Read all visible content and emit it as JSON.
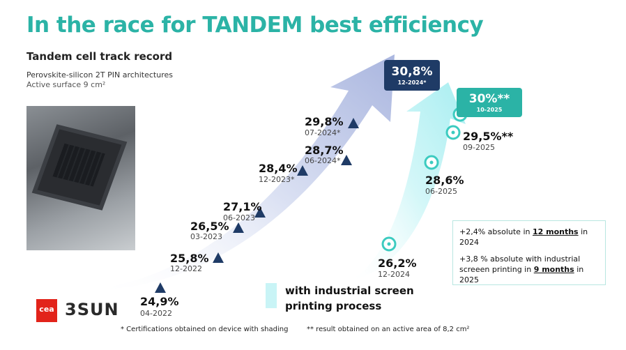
{
  "title": "In the race for TANDEM  best efficiency",
  "subtitle": "Tandem cell track record",
  "architecture": "Perovskite-silicon 2T PIN architectures",
  "surface": "Active surface 9 cm²",
  "chart_data": {
    "type": "line",
    "series": [
      {
        "marker": "triangle",
        "color": "#1f3b66",
        "points": [
          {
            "value": "24,9%",
            "date": "04-2022",
            "y": 24.9
          },
          {
            "value": "25,8%",
            "date": "12-2022",
            "y": 25.8
          },
          {
            "value": "26,5%",
            "date": "03-2023",
            "y": 26.5
          },
          {
            "value": "27,1%",
            "date": "06-2023",
            "y": 27.1
          },
          {
            "value": "28,4%",
            "date": "12-2023*",
            "y": 28.4
          },
          {
            "value": "28,7%",
            "date": "06-2024*",
            "y": 28.7
          },
          {
            "value": "29,8%",
            "date": "07-2024*",
            "y": 29.8
          },
          {
            "value": "30,8%",
            "date": "12-2024*",
            "y": 30.8
          }
        ]
      },
      {
        "marker": "circle",
        "color": "#3ccbc0",
        "points": [
          {
            "value": "26,2%",
            "date": "12-2024",
            "y": 26.2
          },
          {
            "value": "28,6%",
            "date": "06-2025",
            "y": 28.6
          },
          {
            "value": "29,5%**",
            "date": "09-2025",
            "y": 29.5
          },
          {
            "value": "30%**",
            "date": "10-2025",
            "y": 30.0
          }
        ]
      }
    ]
  },
  "highlight_dark": {
    "value": "30,8%",
    "date": "12-2024*"
  },
  "highlight_teal": {
    "value": "30%**",
    "date": "10-2025"
  },
  "notes": {
    "line1_a": "+2,4% absolute in ",
    "line1_b": "12 months",
    "line1_c": " in 2024",
    "line2_a": "+3,8 % absolute with industrial screeen printing in ",
    "line2_b": "9 months",
    "line2_c": " in 2025"
  },
  "process_label_1": "with industrial screen",
  "process_label_2": "printing process",
  "footnote_1": "* Certifications obtained on device with shading",
  "footnote_2": "** result obtained on an active area of 8,2 cm²",
  "logo_cea": "cea",
  "logo_3sun": "3SUN",
  "colors": {
    "teal": "#2bb3a6",
    "navy": "#1f3b66",
    "arrow_light": "#c9f4f6",
    "arrow_blue": "#c7d0ec"
  }
}
